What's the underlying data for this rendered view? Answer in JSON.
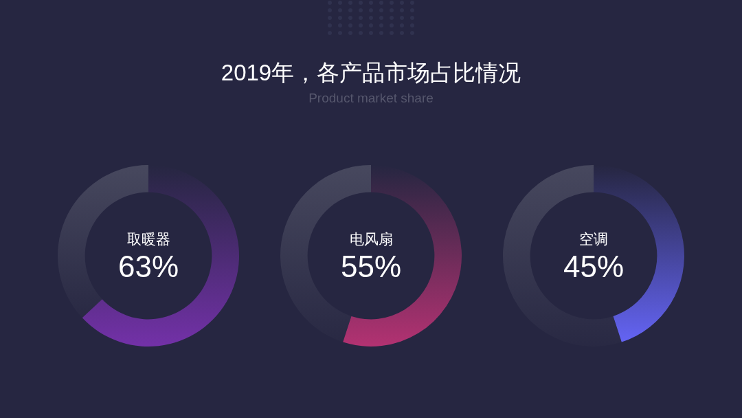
{
  "chart_data": [
    {
      "type": "other",
      "title": "2019年，各产品市场占比情况",
      "subtitle": "Product market share"
    },
    {
      "type": "donut",
      "categories": [
        "取暖器",
        null
      ],
      "values": [
        63,
        37
      ],
      "colors": [
        "#7331a8",
        "#47485e"
      ],
      "value_labels": [
        "63%",
        null
      ]
    },
    {
      "type": "donut",
      "categories": [
        "电风扇",
        null
      ],
      "values": [
        55,
        45
      ],
      "colors": [
        "#b33272",
        "#47485e"
      ],
      "value_labels": [
        "55%",
        null
      ]
    },
    {
      "type": "donut",
      "categories": [
        "空调",
        null
      ],
      "values": [
        45,
        55
      ],
      "colors": [
        "#6464f4",
        "#47485e"
      ],
      "value_labels": [
        "45%",
        null
      ]
    }
  ]
}
